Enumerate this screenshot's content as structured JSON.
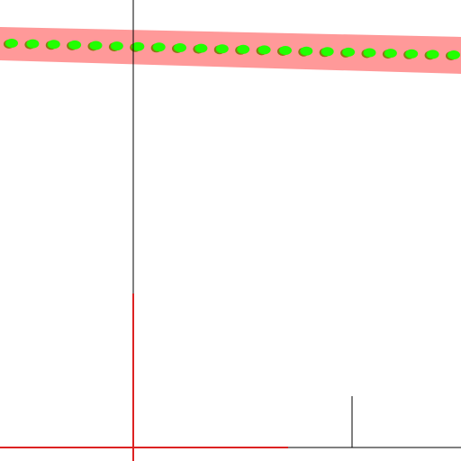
{
  "scene": {
    "background_color": "#ffffff",
    "band_color": "#ff9999",
    "bead_color": "#22ff00",
    "bead_shade_color": "#8a7a10",
    "axis_line_color": "#000000",
    "crosshair_color": "#dd2222",
    "bead_count": 22
  }
}
